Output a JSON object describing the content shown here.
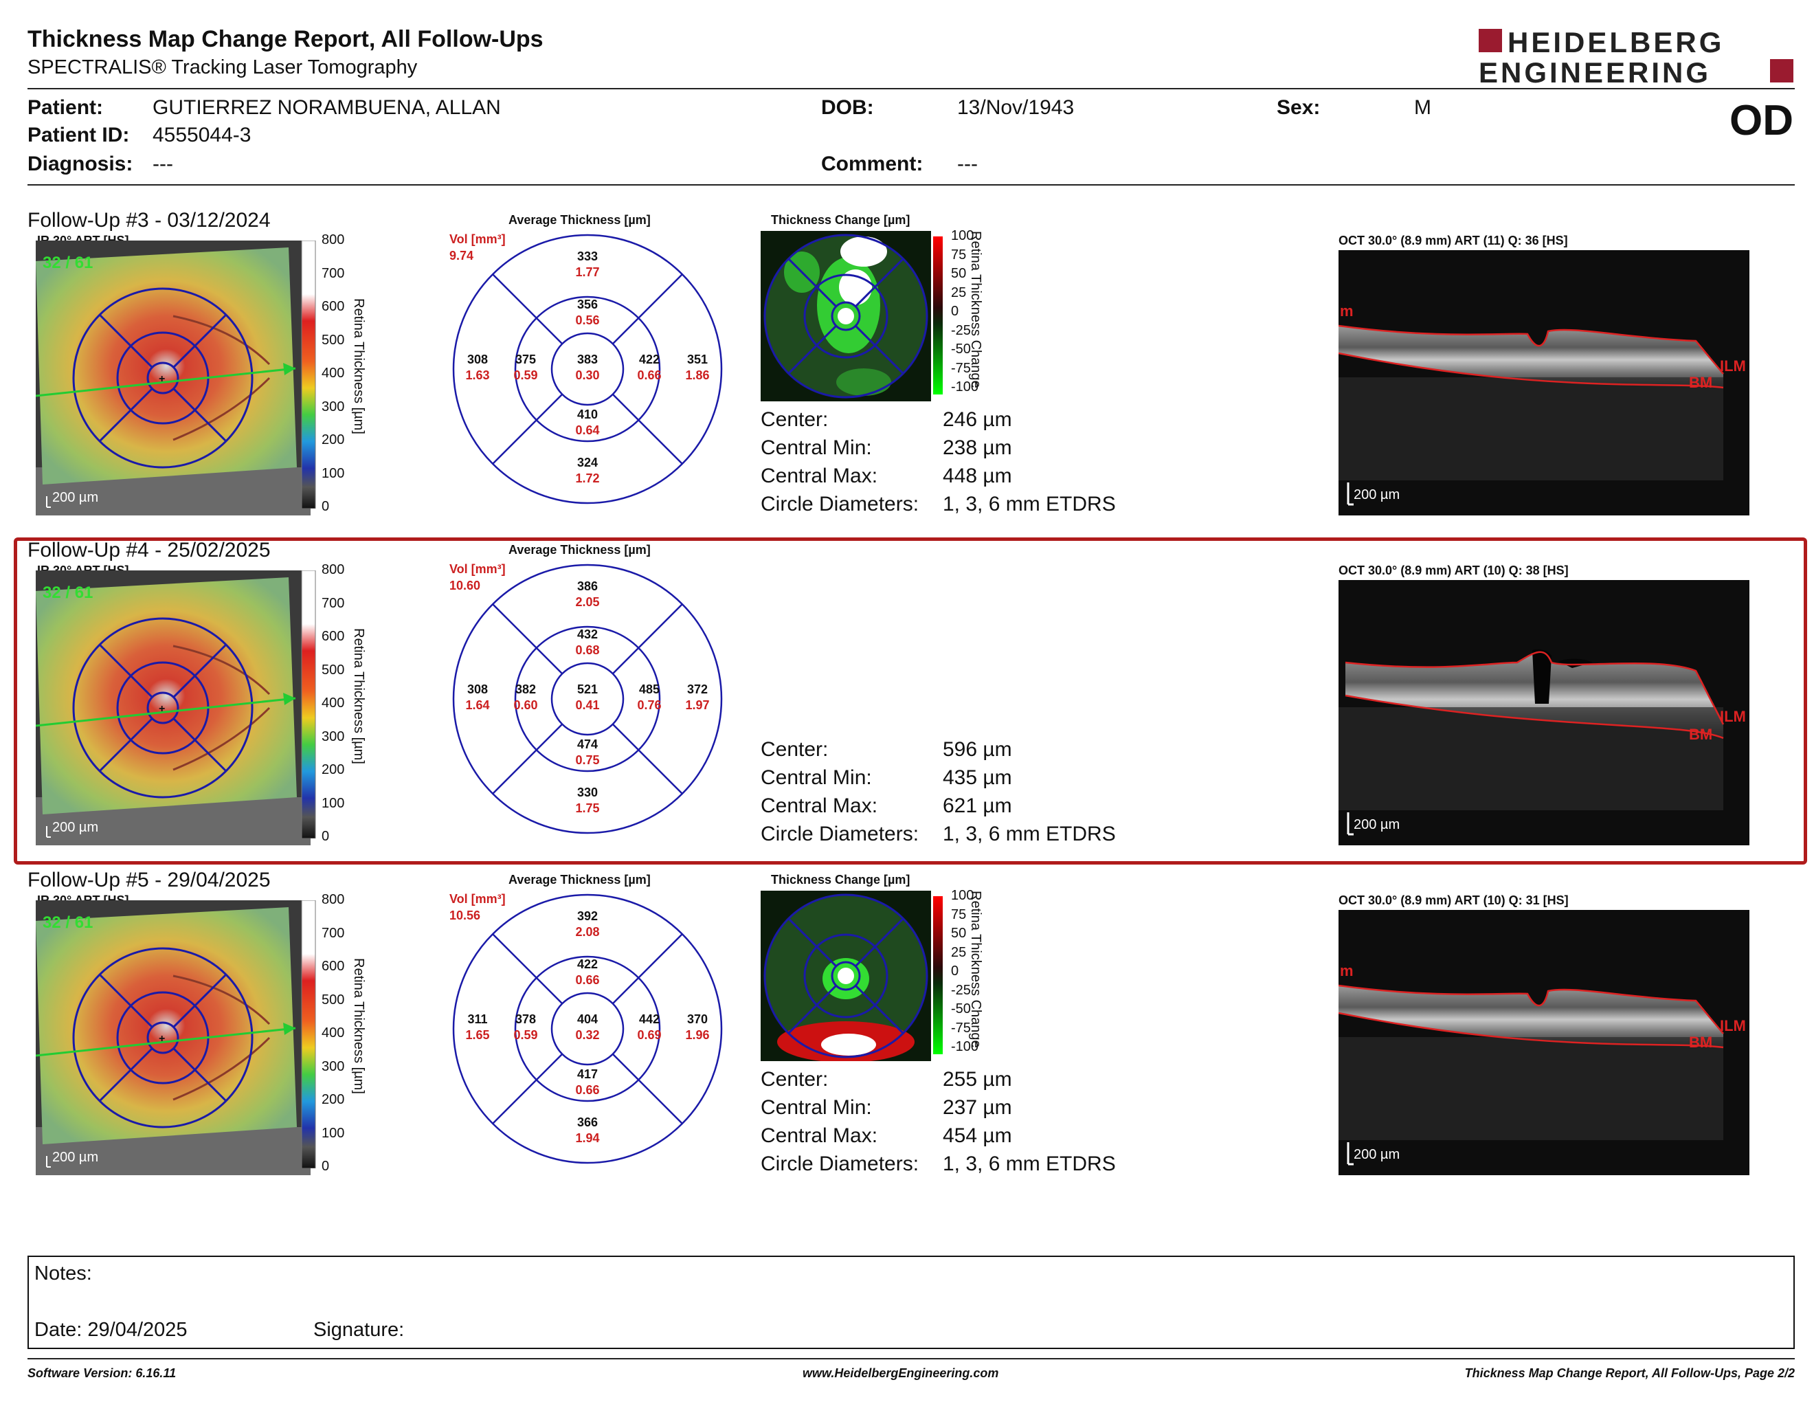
{
  "header": {
    "title": "Thickness Map Change Report, All Follow-Ups",
    "subtitle": "SPECTRALIS® Tracking Laser Tomography",
    "logo_line1": "HEIDELBERG",
    "logo_line2": "ENGINEERING",
    "eye": "OD",
    "colors": {
      "brand": "#9a1b2f",
      "circle": "#1a1aa8",
      "value_red": "#cc1f1f",
      "highlight": "#b01c1c"
    }
  },
  "patient": {
    "patient_label": "Patient:",
    "patient_value": "GUTIERREZ NORAMBUENA, ALLAN",
    "id_label": "Patient ID:",
    "id_value": "4555044-3",
    "diagnosis_label": "Diagnosis:",
    "diagnosis_value": "---",
    "dob_label": "DOB:",
    "dob_value": "13/Nov/1943",
    "comment_label": "Comment:",
    "comment_value": "---",
    "sex_label": "Sex:",
    "sex_value": "M"
  },
  "common": {
    "ir_label": "IR 30° ART [HS]",
    "avg_title": "Average Thickness [µm]",
    "change_title": "Thickness Change [µm]",
    "vol_label": "Vol [mm³]",
    "scalebar": "200 µm",
    "colorbar_ticks": [
      "800",
      "700",
      "600",
      "500",
      "400",
      "300",
      "200",
      "100",
      "0"
    ],
    "colorbar_title": "Retina Thickness [µm]",
    "change_ticks": [
      "100",
      "75",
      "50",
      "25",
      "0",
      "-25",
      "-50",
      "-75",
      "-100"
    ],
    "change_bar_title": "Retina Thickness Change",
    "stat_labels": [
      "Center:",
      "Central Min:",
      "Central Max:",
      "Circle Diameters:"
    ],
    "oct_label_ilm": "ILM",
    "oct_label_bm": "BM",
    "oct_label_m": "m"
  },
  "followups": [
    {
      "title": "Follow-Up #3 - 03/12/2024",
      "tracking": "32 / 61",
      "vol": "9.74",
      "oct_title": "OCT 30.0° (8.9 mm) ART (11) Q: 36 [HS]",
      "has_change_map": true,
      "sectors": {
        "outer_top": [
          "333",
          "1.77"
        ],
        "inner_top": [
          "356",
          "0.56"
        ],
        "outer_left": [
          "308",
          "1.63"
        ],
        "inner_left": [
          "375",
          "0.59"
        ],
        "center": [
          "383",
          "0.30"
        ],
        "inner_right": [
          "422",
          "0.66"
        ],
        "outer_right": [
          "351",
          "1.86"
        ],
        "inner_bottom": [
          "410",
          "0.64"
        ],
        "outer_bottom": [
          "324",
          "1.72"
        ]
      },
      "stats": [
        "246 µm",
        "238 µm",
        "448 µm",
        "1, 3, 6 mm ETDRS"
      ]
    },
    {
      "title": "Follow-Up #4 - 25/02/2025",
      "tracking": "32 / 61",
      "vol": "10.60",
      "oct_title": "OCT 30.0° (8.9 mm) ART (10) Q: 38 [HS]",
      "has_change_map": false,
      "sectors": {
        "outer_top": [
          "386",
          "2.05"
        ],
        "inner_top": [
          "432",
          "0.68"
        ],
        "outer_left": [
          "308",
          "1.64"
        ],
        "inner_left": [
          "382",
          "0.60"
        ],
        "center": [
          "521",
          "0.41"
        ],
        "inner_right": [
          "485",
          "0.76"
        ],
        "outer_right": [
          "372",
          "1.97"
        ],
        "inner_bottom": [
          "474",
          "0.75"
        ],
        "outer_bottom": [
          "330",
          "1.75"
        ]
      },
      "stats": [
        "596 µm",
        "435 µm",
        "621 µm",
        "1, 3, 6 mm ETDRS"
      ]
    },
    {
      "title": "Follow-Up #5 - 29/04/2025",
      "tracking": "32 / 61",
      "vol": "10.56",
      "oct_title": "OCT 30.0° (8.9 mm) ART (10) Q: 31 [HS]",
      "has_change_map": true,
      "sectors": {
        "outer_top": [
          "392",
          "2.08"
        ],
        "inner_top": [
          "422",
          "0.66"
        ],
        "outer_left": [
          "311",
          "1.65"
        ],
        "inner_left": [
          "378",
          "0.59"
        ],
        "center": [
          "404",
          "0.32"
        ],
        "inner_right": [
          "442",
          "0.69"
        ],
        "outer_right": [
          "370",
          "1.96"
        ],
        "inner_bottom": [
          "417",
          "0.66"
        ],
        "outer_bottom": [
          "366",
          "1.94"
        ]
      },
      "stats": [
        "255 µm",
        "237 µm",
        "454 µm",
        "1, 3, 6 mm ETDRS"
      ]
    }
  ],
  "notes": {
    "notes_label": "Notes:",
    "date_label": "Date: 29/04/2025",
    "signature_label": "Signature:"
  },
  "footer": {
    "left": "Software Version: 6.16.11",
    "center": "www.HeidelbergEngineering.com",
    "right": "Thickness Map Change Report, All Follow-Ups, Page 2/2"
  }
}
